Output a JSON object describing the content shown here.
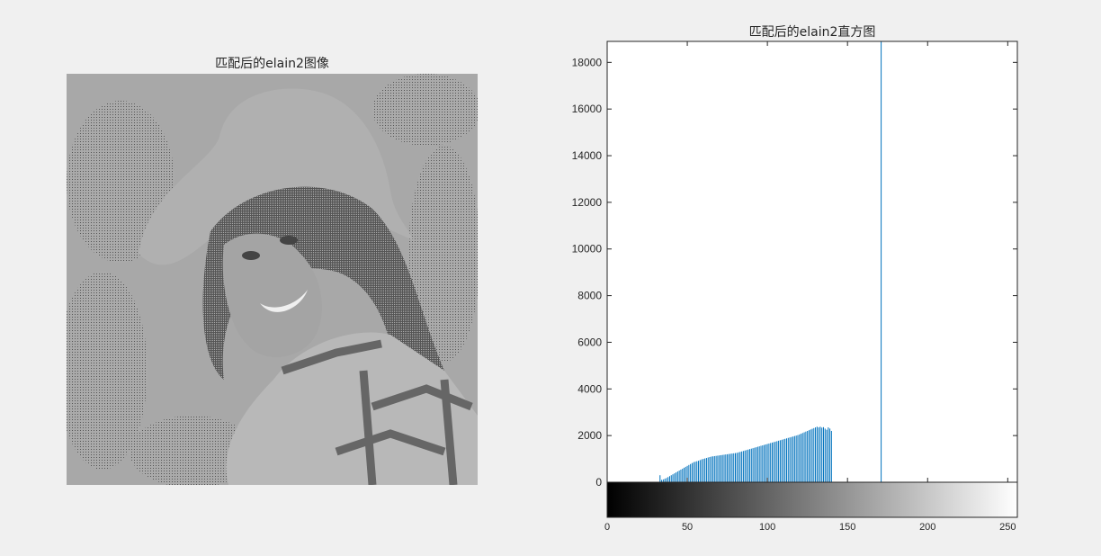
{
  "figure": {
    "left_title": "匹配后的elain2图像",
    "right_title": "匹配后的elain2直方图"
  },
  "colors": {
    "background": "#f0f0f0",
    "bar": "#0072bd",
    "axis": "#262626",
    "image_light": "#aaaaaa",
    "image_dark": "#555555"
  },
  "image": {
    "icon": "matched-portrait-image"
  },
  "chart_data": {
    "type": "bar",
    "title": "匹配后的elain2直方图",
    "xlabel": "",
    "ylabel": "",
    "xlim": [
      0,
      256
    ],
    "ylim": [
      0,
      18900
    ],
    "yticks": [
      0,
      2000,
      4000,
      6000,
      8000,
      10000,
      12000,
      14000,
      16000,
      18000
    ],
    "ytick_labels": [
      "0",
      "2000",
      "4000",
      "6000",
      "8000",
      "10000",
      "12000",
      "14000",
      "16000",
      "18000"
    ],
    "xticks": [
      0,
      50,
      100,
      150,
      200,
      250
    ],
    "xtick_labels": [
      "0",
      "50",
      "100",
      "150",
      "200",
      "250"
    ],
    "colorbar": "gray 0-255 below x axis",
    "grid": false,
    "series": [
      {
        "x": [
          33,
          34,
          35,
          36,
          37,
          38,
          39,
          40,
          41,
          42,
          43,
          44,
          45,
          46,
          47,
          48,
          49,
          50,
          51,
          52,
          53,
          54,
          55,
          56,
          57,
          58,
          59,
          60,
          61,
          62,
          63,
          64,
          65,
          66,
          67,
          68,
          69,
          70,
          71,
          72,
          73,
          74,
          75,
          76,
          77,
          78,
          79,
          80,
          81,
          82,
          83,
          84,
          85,
          86,
          87,
          88,
          89,
          90,
          91,
          92,
          93,
          94,
          95,
          96,
          97,
          98,
          99,
          100,
          101,
          102,
          103,
          104,
          105,
          106,
          107,
          108,
          109,
          110,
          111,
          112,
          113,
          114,
          115,
          116,
          117,
          118,
          119,
          120,
          121,
          122,
          123,
          124,
          125,
          126,
          127,
          128,
          129,
          130,
          131,
          132,
          133,
          134,
          135,
          136,
          137,
          138,
          139,
          140,
          171
        ],
        "values": [
          300,
          100,
          120,
          150,
          180,
          220,
          260,
          300,
          340,
          380,
          420,
          460,
          500,
          540,
          580,
          620,
          660,
          700,
          740,
          780,
          820,
          860,
          880,
          900,
          920,
          950,
          980,
          1000,
          1020,
          1040,
          1060,
          1080,
          1100,
          1110,
          1120,
          1130,
          1140,
          1150,
          1160,
          1170,
          1180,
          1190,
          1200,
          1210,
          1220,
          1230,
          1240,
          1250,
          1260,
          1280,
          1300,
          1320,
          1340,
          1360,
          1380,
          1400,
          1420,
          1440,
          1460,
          1480,
          1500,
          1520,
          1540,
          1560,
          1580,
          1600,
          1620,
          1640,
          1660,
          1680,
          1700,
          1720,
          1740,
          1760,
          1780,
          1800,
          1820,
          1840,
          1860,
          1880,
          1900,
          1920,
          1940,
          1960,
          1980,
          2000,
          2020,
          2050,
          2080,
          2110,
          2140,
          2170,
          2200,
          2230,
          2260,
          2290,
          2320,
          2350,
          2380,
          2350,
          2380,
          2340,
          2360,
          2300,
          2250,
          2350,
          2300,
          2200,
          18900
        ]
      }
    ]
  }
}
